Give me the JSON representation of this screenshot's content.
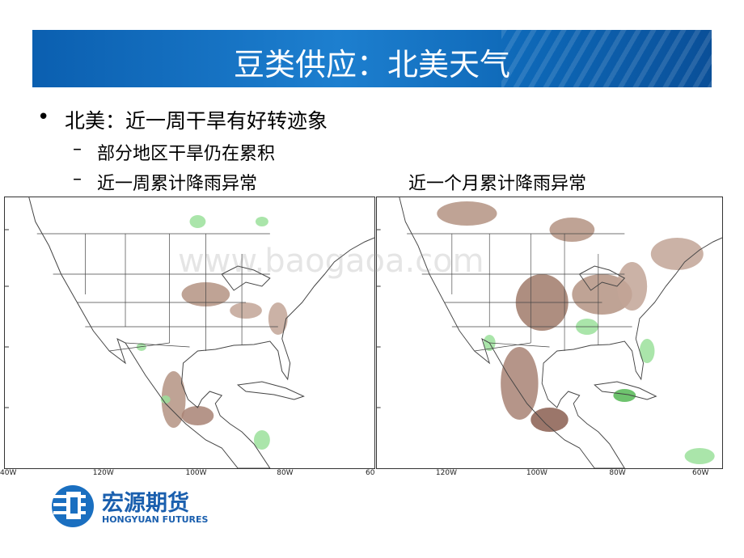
{
  "header": {
    "title": "豆类供应：北美天气"
  },
  "bullets": [
    {
      "text": "北美：近一周干旱有好转迹象",
      "sub": [
        "部分地区干旱仍在累积",
        "近一周累计降雨异常"
      ]
    }
  ],
  "maps": [
    {
      "x_labels": [
        "40W",
        "120W",
        "100W",
        "80W",
        "60"
      ]
    },
    {
      "caption": "近一个月累计降雨异常",
      "x_labels": [
        "120W",
        "100W",
        "80W",
        "60W"
      ]
    }
  ],
  "watermark": "www.baogaoa.com",
  "logo": {
    "name": "宏源期货",
    "english": "HONGYUAN FUTURES"
  }
}
